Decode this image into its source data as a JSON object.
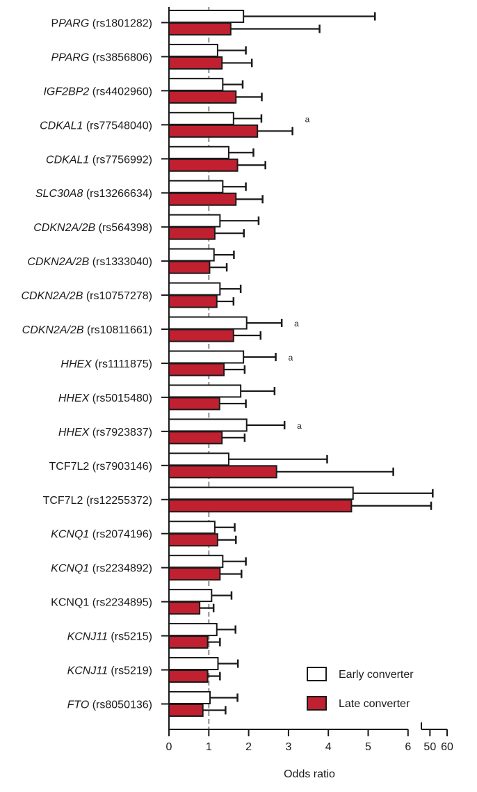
{
  "chart_data": {
    "type": "bar",
    "orientation": "horizontal",
    "xlabel": "Odds ratio",
    "xlim": [
      0,
      6
    ],
    "x_ticks": [
      "0",
      "1",
      "2",
      "3",
      "4",
      "5",
      "6"
    ],
    "x_break_ticks": [
      "50",
      "60"
    ],
    "x_break_range": [
      45,
      60
    ],
    "reference_line": 1,
    "categories": [
      {
        "gene": "PPARG",
        "snp": "(rs1801282)",
        "gene_prefix": "P",
        "gene_italic": "PARG"
      },
      {
        "gene": "PPARG",
        "snp": "(rs3856806)"
      },
      {
        "gene": "IGF2BP2",
        "snp": "(rs4402960)"
      },
      {
        "gene": "CDKAL1",
        "snp": "(rs77548040)"
      },
      {
        "gene": "CDKAL1",
        "snp": "(rs7756992)"
      },
      {
        "gene": "SLC30A8",
        "snp": "(rs13266634)"
      },
      {
        "gene": "CDKN2A/2B",
        "snp": "(rs564398)"
      },
      {
        "gene": "CDKN2A/2B",
        "snp": "(rs1333040)"
      },
      {
        "gene": "CDKN2A/2B",
        "snp": "(rs10757278)"
      },
      {
        "gene": "CDKN2A/2B",
        "snp": "(rs10811661)"
      },
      {
        "gene": "HHEX",
        "snp": "(rs1111875)"
      },
      {
        "gene": "HHEX",
        "snp": "(rs5015480)"
      },
      {
        "gene": "HHEX",
        "snp": "(rs7923837)"
      },
      {
        "gene": "TCF7L2",
        "snp": "(rs7903146)",
        "upright": true
      },
      {
        "gene": "TCF7L2",
        "snp": "(rs12255372)",
        "upright": true
      },
      {
        "gene": "KCNQ1",
        "snp": "(rs2074196)"
      },
      {
        "gene": "KCNQ1",
        "snp": "(rs2234892)"
      },
      {
        "gene": "KCNQ1",
        "snp": "(rs2234895)",
        "upright": true
      },
      {
        "gene": "KCNJ11",
        "snp": "(rs5215)"
      },
      {
        "gene": "KCNJ11",
        "snp": "(rs5219)"
      },
      {
        "gene": "FTO",
        "snp": "(rs8050136)"
      }
    ],
    "series": [
      {
        "name": "Early converter",
        "color": "#ffffff",
        "values": [
          1.87,
          1.22,
          1.35,
          1.62,
          1.5,
          1.35,
          1.28,
          1.13,
          1.28,
          1.95,
          1.87,
          1.8,
          1.95,
          1.5,
          4.62,
          1.15,
          1.35,
          1.07,
          1.2,
          1.23,
          1.03
        ],
        "ci_upper": [
          5.17,
          1.93,
          1.85,
          2.32,
          2.12,
          1.93,
          2.25,
          1.63,
          1.8,
          2.83,
          2.68,
          2.65,
          2.9,
          3.97,
          6.62,
          1.65,
          1.93,
          1.57,
          1.67,
          1.73,
          1.72
        ]
      },
      {
        "name": "Late converter",
        "color": "#c0202f",
        "values": [
          1.55,
          1.33,
          1.68,
          2.22,
          1.72,
          1.68,
          1.15,
          1.02,
          1.2,
          1.62,
          1.38,
          1.27,
          1.33,
          2.7,
          4.58,
          1.22,
          1.28,
          0.77,
          0.97,
          0.97,
          0.85
        ],
        "ci_upper": [
          3.78,
          2.08,
          2.33,
          3.1,
          2.42,
          2.35,
          1.88,
          1.45,
          1.62,
          2.3,
          1.9,
          1.93,
          1.9,
          5.63,
          6.58,
          1.68,
          1.82,
          1.12,
          1.28,
          1.28,
          1.42
        ]
      }
    ],
    "annotations": [
      {
        "category_index": 3,
        "text": "a"
      },
      {
        "category_index": 9,
        "text": "a"
      },
      {
        "category_index": 10,
        "text": "a"
      },
      {
        "category_index": 12,
        "text": "a"
      }
    ],
    "legend": {
      "position": "bottom-right",
      "items": [
        {
          "label": "Early converter",
          "color": "#ffffff"
        },
        {
          "label": "Late converter",
          "color": "#c0202f"
        }
      ]
    },
    "grid": false
  }
}
